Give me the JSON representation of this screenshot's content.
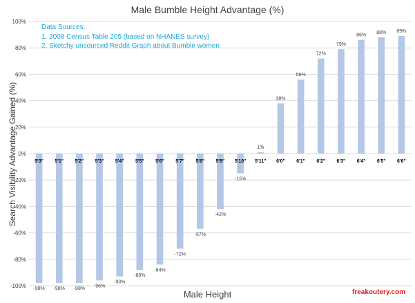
{
  "chart_data": {
    "type": "bar",
    "title": "Male Bumble Height Advantage (%)",
    "xlabel": "Male Height",
    "ylabel": "Search Visibility Advantage Gained (%)",
    "categories": [
      "5'0\"",
      "5'1\"",
      "5'2\"",
      "5'3\"",
      "5'4\"",
      "5'5\"",
      "5'6\"",
      "5'7\"",
      "5'8\"",
      "5'9\"",
      "5'10\"",
      "5'11\"",
      "6'0\"",
      "6'1\"",
      "6'2\"",
      "6'3\"",
      "6'4\"",
      "6'5\"",
      "6'6\""
    ],
    "values": [
      -98,
      -98,
      -98,
      -96,
      -93,
      -88,
      -84,
      -72,
      -57,
      -42,
      -15,
      1,
      38,
      56,
      72,
      79,
      86,
      88,
      89
    ],
    "data_labels": [
      "-98%",
      "-98%",
      "-98%",
      "-96%",
      "-93%",
      "-88%",
      "-84%",
      "-72%",
      "-57%",
      "-42%",
      "-15%",
      "1%",
      "38%",
      "56%",
      "72%",
      "79%",
      "86%",
      "88%",
      "89%"
    ],
    "ylim": [
      -100,
      100
    ],
    "yticks": [
      -100,
      -80,
      -60,
      -40,
      -20,
      0,
      20,
      40,
      60,
      80,
      100
    ],
    "ytick_labels": [
      "-100%",
      "-80%",
      "-60%",
      "-40%",
      "-20%",
      "0%",
      "20%",
      "40%",
      "60%",
      "80%",
      "100%"
    ],
    "grid": true,
    "bar_color": "#b4c7e7",
    "annotation": {
      "heading": "Data Sources:",
      "lines": [
        "1. 2008 Census Table 205 (based on NHANES survey)",
        "2. Sketchy unsourced Reddit Graph about Bumble women"
      ]
    }
  },
  "watermark": "freakoutery.com",
  "colors": {
    "grid": "#d9d9d9",
    "text": "#404040",
    "annotation": "#1aa6d9",
    "watermark": "#e31a1a"
  }
}
